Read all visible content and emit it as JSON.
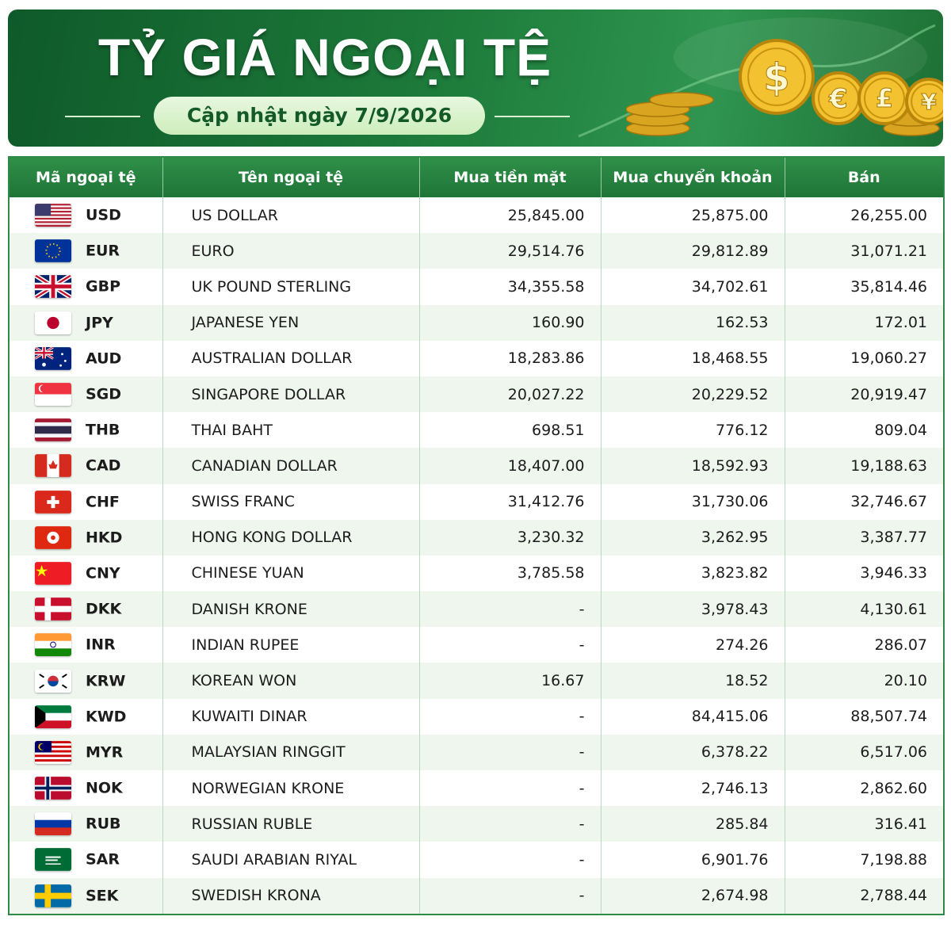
{
  "header": {
    "title": "TỶ GIÁ NGOẠI TỆ",
    "subtitle": "Cập nhật ngày 7/9/2026",
    "coin_symbols": [
      "$",
      "€",
      "£",
      "¥"
    ]
  },
  "table": {
    "columns": [
      "Mã ngoại tệ",
      "Tên ngoại tệ",
      "Mua tiền mặt",
      "Mua chuyển khoản",
      "Bán"
    ],
    "rows": [
      [
        "USD",
        "US DOLLAR",
        "25,845.00",
        "25,875.00",
        "26,255.00"
      ],
      [
        "EUR",
        "EURO",
        "29,514.76",
        "29,812.89",
        "31,071.21"
      ],
      [
        "GBP",
        "UK POUND STERLING",
        "34,355.58",
        "34,702.61",
        "35,814.46"
      ],
      [
        "JPY",
        "JAPANESE YEN",
        "160.90",
        "162.53",
        "172.01"
      ],
      [
        "AUD",
        "AUSTRALIAN DOLLAR",
        "18,283.86",
        "18,468.55",
        "19,060.27"
      ],
      [
        "SGD",
        "SINGAPORE DOLLAR",
        "20,027.22",
        "20,229.52",
        "20,919.47"
      ],
      [
        "THB",
        "THAI BAHT",
        "698.51",
        "776.12",
        "809.04"
      ],
      [
        "CAD",
        "CANADIAN DOLLAR",
        "18,407.00",
        "18,592.93",
        "19,188.63"
      ],
      [
        "CHF",
        "SWISS FRANC",
        "31,412.76",
        "31,730.06",
        "32,746.67"
      ],
      [
        "HKD",
        "HONG KONG DOLLAR",
        "3,230.32",
        "3,262.95",
        "3,387.77"
      ],
      [
        "CNY",
        "CHINESE YUAN",
        "3,785.58",
        "3,823.82",
        "3,946.33"
      ],
      [
        "DKK",
        "DANISH KRONE",
        "-",
        "3,978.43",
        "4,130.61"
      ],
      [
        "INR",
        "INDIAN RUPEE",
        "-",
        "274.26",
        "286.07"
      ],
      [
        "KRW",
        "KOREAN WON",
        "16.67",
        "18.52",
        "20.10"
      ],
      [
        "KWD",
        "KUWAITI DINAR",
        "-",
        "84,415.06",
        "88,507.74"
      ],
      [
        "MYR",
        "MALAYSIAN RINGGIT",
        "-",
        "6,378.22",
        "6,517.06"
      ],
      [
        "NOK",
        "NORWEGIAN KRONE",
        "-",
        "2,746.13",
        "2,862.60"
      ],
      [
        "RUB",
        "RUSSIAN RUBLE",
        "-",
        "285.84",
        "316.41"
      ],
      [
        "SAR",
        "SAUDI ARABIAN RIYAL",
        "-",
        "6,901.76",
        "7,198.88"
      ],
      [
        "SEK",
        "SWEDISH KRONA",
        "-",
        "2,674.98",
        "2,788.44"
      ]
    ]
  }
}
